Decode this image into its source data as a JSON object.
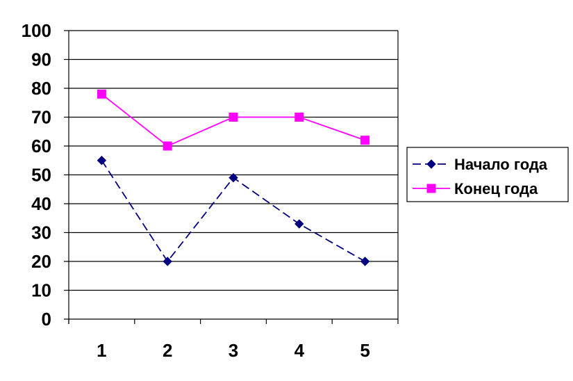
{
  "chart_data": {
    "type": "line",
    "title": "",
    "xlabel": "",
    "ylabel": "",
    "categories": [
      "1",
      "2",
      "3",
      "4",
      "5"
    ],
    "ylim": [
      0,
      100
    ],
    "yticks": [
      0,
      10,
      20,
      30,
      40,
      50,
      60,
      70,
      80,
      90,
      100
    ],
    "grid": "horizontal",
    "legend_position": "right",
    "series": [
      {
        "name": "Начало года",
        "values": [
          55,
          20,
          49,
          33,
          20
        ],
        "color": "#000080",
        "line_style": "dashed",
        "marker": "diamond"
      },
      {
        "name": "Конец года",
        "values": [
          78,
          60,
          70,
          70,
          62
        ],
        "color": "#FF00FF",
        "line_style": "solid",
        "marker": "square"
      }
    ]
  }
}
